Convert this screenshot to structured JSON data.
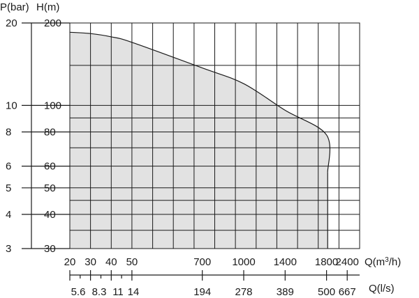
{
  "chart_data": {
    "type": "area",
    "title": "",
    "y_axes": [
      {
        "label": "P(bar)",
        "ticks": [
          "20",
          "10",
          "8",
          "6",
          "5",
          "4",
          "3"
        ]
      },
      {
        "label": "H(m)",
        "ticks": [
          "200",
          "100",
          "80",
          "60",
          "50",
          "40",
          "30"
        ],
        "scale": "log",
        "range": [
          30,
          200
        ]
      }
    ],
    "x_axes": [
      {
        "label": "Q(m³/h)",
        "ticks": [
          "20",
          "30",
          "40",
          "50",
          "700",
          "1000",
          "1400",
          "1800",
          "2400"
        ]
      },
      {
        "label": "Q(l/s)",
        "ticks": [
          "5.6",
          "8.3",
          "11",
          "14",
          "194",
          "278",
          "389",
          "500",
          "667"
        ]
      }
    ],
    "series": [
      {
        "x": [
          20,
          30,
          40,
          50,
          700,
          1000,
          1400,
          1800,
          2400
        ],
        "y": [
          185,
          183,
          178,
          170,
          137,
          120,
          96,
          78,
          57
        ]
      }
    ],
    "grid": true
  }
}
